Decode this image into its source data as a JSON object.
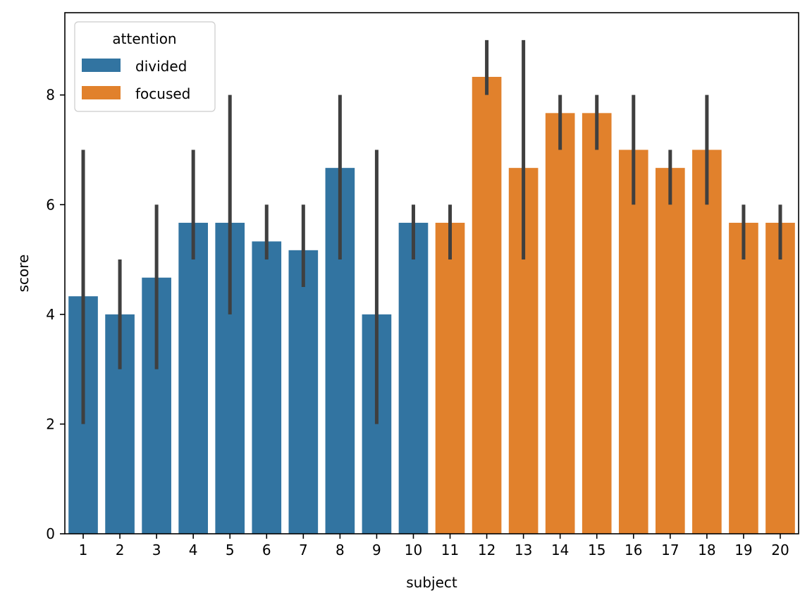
{
  "chart_data": {
    "type": "bar",
    "xlabel": "subject",
    "ylabel": "score",
    "ylim": [
      0,
      9.5
    ],
    "yticks": [
      0,
      2,
      4,
      6,
      8
    ],
    "grid": false,
    "legend": {
      "title": "attention",
      "placement": "top-left",
      "entries": [
        {
          "label": "divided",
          "color": "#3274a1"
        },
        {
          "label": "focused",
          "color": "#e1812c"
        }
      ]
    },
    "categories": [
      "1",
      "2",
      "3",
      "4",
      "5",
      "6",
      "7",
      "8",
      "9",
      "10",
      "11",
      "12",
      "13",
      "14",
      "15",
      "16",
      "17",
      "18",
      "19",
      "20"
    ],
    "values": [
      4.33,
      4.0,
      4.67,
      5.67,
      5.67,
      5.33,
      5.17,
      6.67,
      4.0,
      5.67,
      5.67,
      8.33,
      6.67,
      7.67,
      7.67,
      7.0,
      6.67,
      7.0,
      5.67,
      5.67
    ],
    "error_low": [
      2,
      3,
      3,
      5,
      4,
      5,
      4.5,
      5,
      2,
      5,
      5,
      8,
      5,
      7,
      7,
      6,
      6,
      6,
      5,
      5
    ],
    "error_high": [
      7,
      5,
      6,
      7,
      8,
      6,
      6,
      8,
      7,
      6,
      6,
      9,
      9,
      8,
      8,
      8,
      7,
      8,
      6,
      6
    ],
    "group": [
      "divided",
      "divided",
      "divided",
      "divided",
      "divided",
      "divided",
      "divided",
      "divided",
      "divided",
      "divided",
      "focused",
      "focused",
      "focused",
      "focused",
      "focused",
      "focused",
      "focused",
      "focused",
      "focused",
      "focused"
    ],
    "error_color": "#3f3f3f"
  }
}
